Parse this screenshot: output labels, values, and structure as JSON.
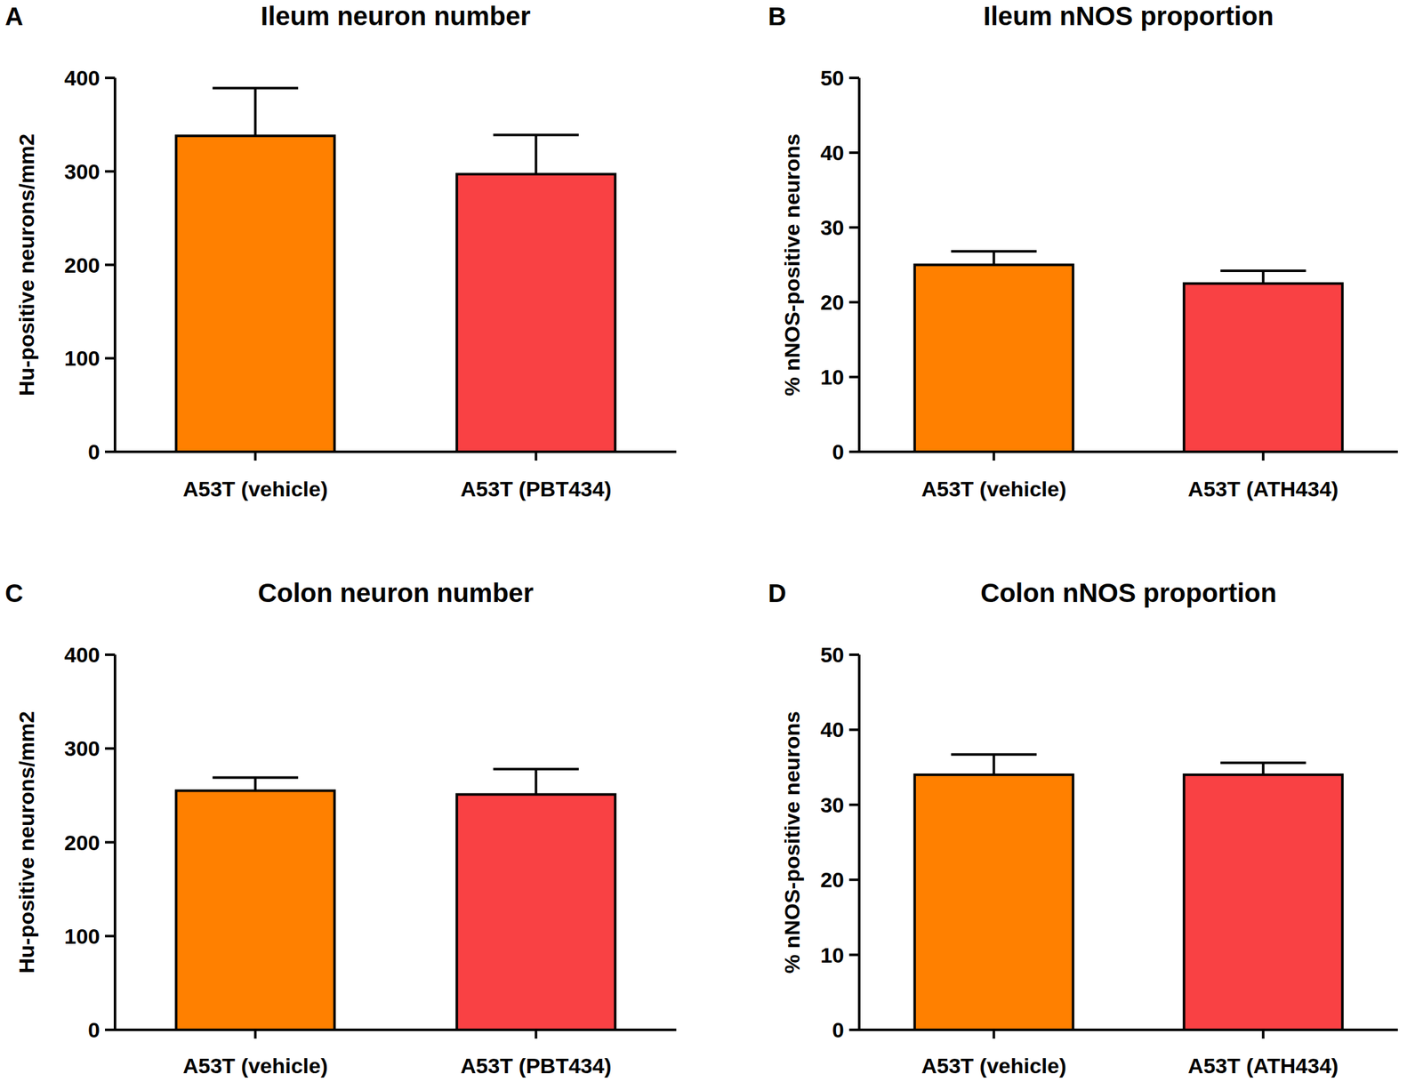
{
  "chart_data": [
    {
      "type": "bar",
      "annotation": "A",
      "title": "Ileum neuron number",
      "y_label": "Hu-positive neurons/mm2",
      "categories": [
        "A53T (vehicle)",
        "A53T (PBT434)"
      ],
      "values": [
        338,
        297
      ],
      "errors": [
        51,
        42
      ],
      "colors": [
        "#ff8000",
        "#f94144"
      ],
      "ylim": [
        0,
        400
      ],
      "yticks": [
        0,
        100,
        200,
        300,
        400
      ],
      "grid": false
    },
    {
      "type": "bar",
      "annotation": "B",
      "title": "Ileum nNOS proportion",
      "y_label": "% nNOS-positive neurons",
      "categories": [
        "A53T (vehicle)",
        "A53T (ATH434)"
      ],
      "values": [
        25,
        22.5
      ],
      "errors": [
        1.8,
        1.7
      ],
      "colors": [
        "#ff8000",
        "#f94144"
      ],
      "ylim": [
        0,
        50
      ],
      "yticks": [
        0,
        10,
        20,
        30,
        40,
        50
      ],
      "grid": false
    },
    {
      "type": "bar",
      "annotation": "C",
      "title": "Colon neuron number",
      "y_label": "Hu-positive neurons/mm2",
      "categories": [
        "A53T (vehicle)",
        "A53T (PBT434)"
      ],
      "values": [
        255,
        251
      ],
      "errors": [
        14,
        27
      ],
      "colors": [
        "#ff8000",
        "#f94144"
      ],
      "ylim": [
        0,
        400
      ],
      "yticks": [
        0,
        100,
        200,
        300,
        400
      ],
      "grid": false
    },
    {
      "type": "bar",
      "annotation": "D",
      "title": "Colon nNOS proportion",
      "y_label": "% nNOS-positive neurons",
      "categories": [
        "A53T (vehicle)",
        "A53T (ATH434)"
      ],
      "values": [
        34,
        34
      ],
      "errors": [
        2.7,
        1.6
      ],
      "colors": [
        "#ff8000",
        "#f94144"
      ],
      "ylim": [
        0,
        50
      ],
      "yticks": [
        0,
        10,
        20,
        30,
        40,
        50
      ],
      "grid": false
    }
  ]
}
